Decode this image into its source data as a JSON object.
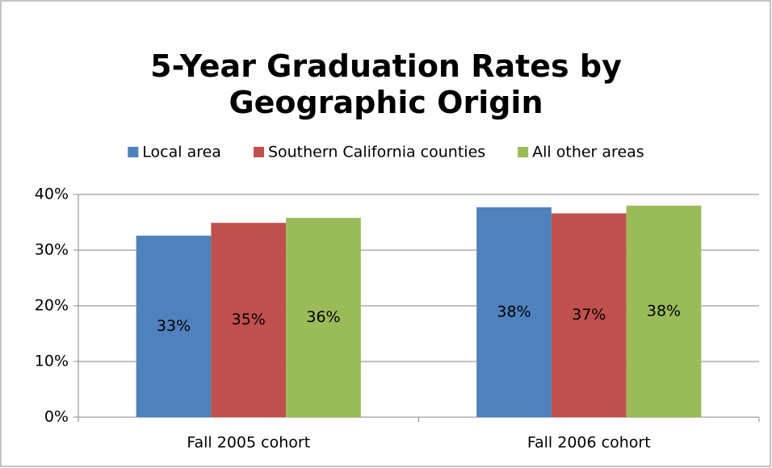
{
  "chart_data": {
    "type": "bar",
    "title": "5-Year Graduation Rates by Geographic Origin",
    "categories": [
      "Fall 2005 cohort",
      "Fall 2006 cohort"
    ],
    "series": [
      {
        "name": "Local area",
        "color": "#4f81bd",
        "values": [
          32.6,
          37.7
        ],
        "value_labels": [
          "33%",
          "38%"
        ]
      },
      {
        "name": "Southern California counties",
        "color": "#c0504d",
        "values": [
          34.9,
          36.6
        ],
        "value_labels": [
          "35%",
          "37%"
        ]
      },
      {
        "name": "All other areas",
        "color": "#9bbb59",
        "values": [
          35.8,
          38.0
        ],
        "value_labels": [
          "36%",
          "38%"
        ]
      }
    ],
    "ylim": [
      0,
      40
    ],
    "yticks": [
      {
        "value": 0,
        "label": "0%"
      },
      {
        "value": 10,
        "label": "10%"
      },
      {
        "value": 20,
        "label": "20%"
      },
      {
        "value": 30,
        "label": "30%"
      },
      {
        "value": 40,
        "label": "40%"
      }
    ],
    "grid": true,
    "legend": "top"
  }
}
